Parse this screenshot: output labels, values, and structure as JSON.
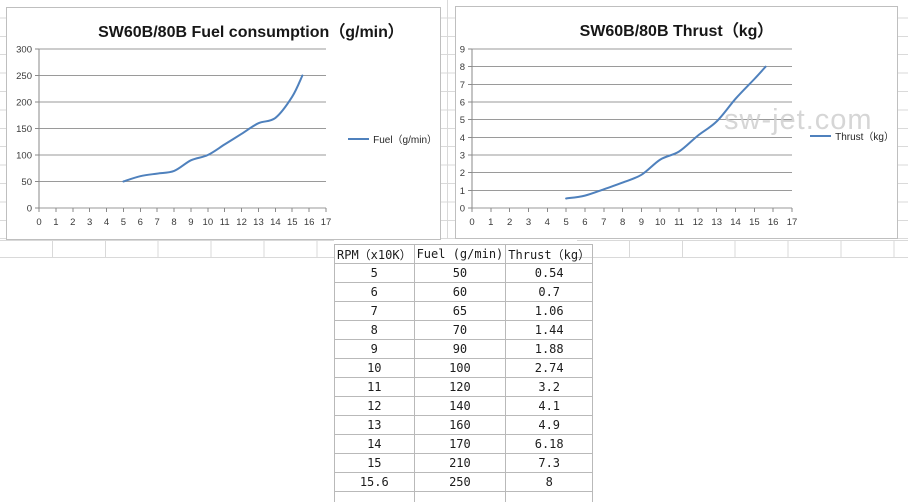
{
  "chart_data": [
    {
      "type": "line",
      "title": "SW60B/80B Fuel consumption（g/min）",
      "x": [
        5,
        6,
        7,
        8,
        9,
        10,
        11,
        12,
        13,
        14,
        15,
        15.6
      ],
      "series": [
        {
          "name": "Fuel（g/min）",
          "values": [
            50,
            60,
            65,
            70,
            90,
            100,
            120,
            140,
            160,
            170,
            210,
            250
          ],
          "color": "#4F81BD"
        }
      ],
      "xlim": [
        0,
        17
      ],
      "xtick_step": 1,
      "ylim": [
        0,
        300
      ],
      "ytick_step": 50,
      "grid": true,
      "legend_position": "right",
      "smooth": true
    },
    {
      "type": "line",
      "title": "SW60B/80B Thrust（kg）",
      "x": [
        5,
        6,
        7,
        8,
        9,
        10,
        11,
        12,
        13,
        14,
        15,
        15.6
      ],
      "series": [
        {
          "name": "Thrust（kg）",
          "values": [
            0.54,
            0.7,
            1.06,
            1.44,
            1.88,
            2.74,
            3.2,
            4.1,
            4.9,
            6.18,
            7.3,
            8
          ],
          "color": "#4F81BD"
        }
      ],
      "xlim": [
        0,
        17
      ],
      "xtick_step": 1,
      "ylim": [
        0,
        9
      ],
      "ytick_step": 1,
      "grid": true,
      "legend_position": "right",
      "smooth": true,
      "watermark": {
        "text": "sw-jet.com",
        "color": "#cfcfcf"
      }
    },
    {
      "type": "table",
      "columns": [
        "RPM（x10K）",
        "Fuel (g/min)",
        "Thrust（kg）"
      ],
      "rows": [
        [
          "5",
          "50",
          "0.54"
        ],
        [
          "6",
          "60",
          "0.7"
        ],
        [
          "7",
          "65",
          "1.06"
        ],
        [
          "8",
          "70",
          "1.44"
        ],
        [
          "9",
          "90",
          "1.88"
        ],
        [
          "10",
          "100",
          "2.74"
        ],
        [
          "11",
          "120",
          "3.2"
        ],
        [
          "12",
          "140",
          "4.1"
        ],
        [
          "13",
          "160",
          "4.9"
        ],
        [
          "14",
          "170",
          "6.18"
        ],
        [
          "15",
          "210",
          "7.3"
        ],
        [
          "15.6",
          "250",
          "8"
        ]
      ]
    }
  ],
  "colors": {
    "series_blue": "#4F81BD",
    "plot_gridline": "#9a9a9a",
    "sheet_gridline": "#d9d9d9",
    "watermark_gray": "#cfcfcf"
  }
}
